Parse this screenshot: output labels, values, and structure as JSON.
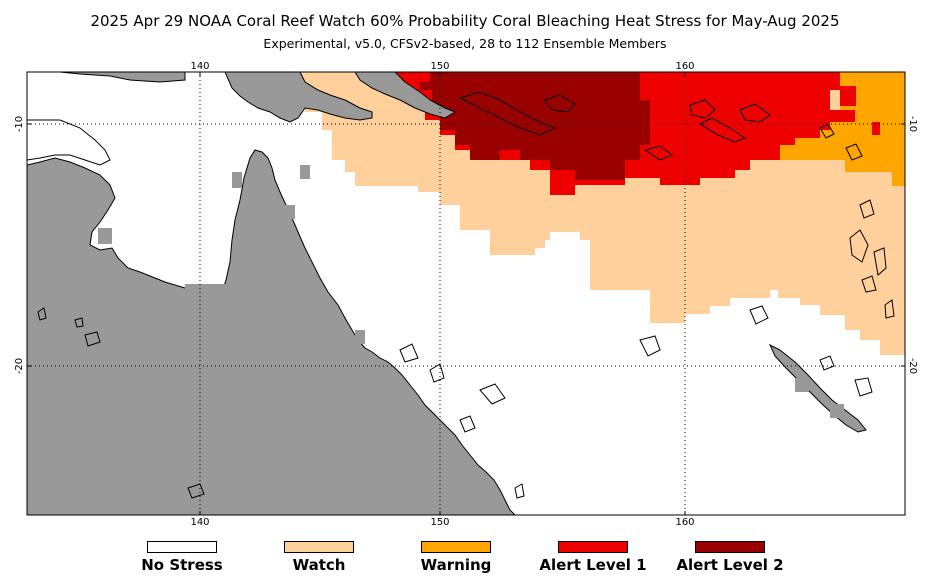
{
  "header": {
    "title": "2025 Apr 29 NOAA Coral Reef Watch 60% Probability Coral Bleaching Heat Stress for May-Aug 2025",
    "subtitle": "Experimental, v5.0, CFSv2-based, 28 to 112 Ensemble Members"
  },
  "axes": {
    "lon_top": [
      "140",
      "150",
      "160"
    ],
    "lon_bottom": [
      "140",
      "150",
      "160"
    ],
    "lat_left": [
      "-10",
      "-20"
    ],
    "lat_right": [
      "-10",
      "-20"
    ]
  },
  "colors": {
    "no_stress": "#ffffff",
    "watch": "#ffd09c",
    "warning": "#ffa500",
    "alert1": "#ee0000",
    "alert2": "#990000",
    "land": "#999999"
  },
  "legend": [
    {
      "label": "No Stress",
      "color": "#ffffff"
    },
    {
      "label": "Watch",
      "color": "#ffd09c"
    },
    {
      "label": "Warning",
      "color": "#ffa500"
    },
    {
      "label": "Alert Level 1",
      "color": "#ee0000"
    },
    {
      "label": "Alert Level 2",
      "color": "#990000"
    }
  ]
}
